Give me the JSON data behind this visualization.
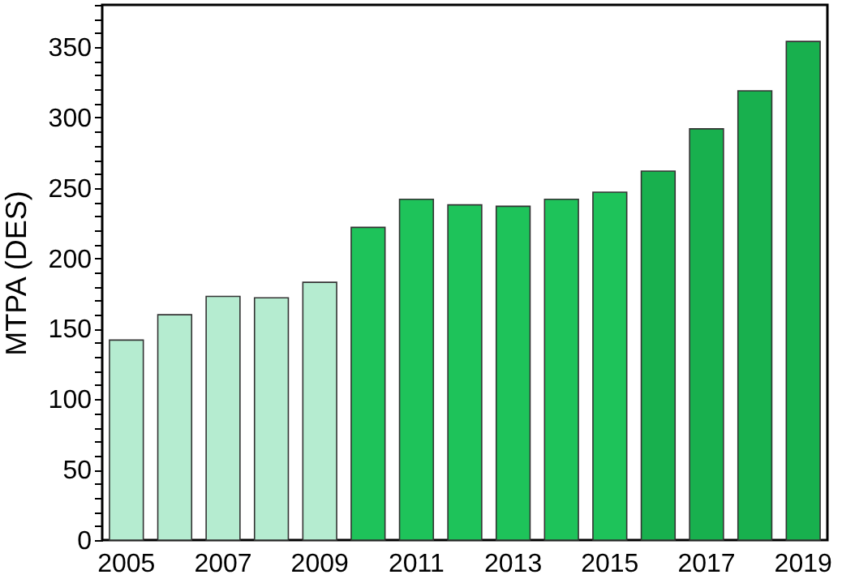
{
  "chart_data": {
    "type": "bar",
    "ylabel": "MTPA (DES)",
    "categories": [
      "2005",
      null,
      "2007",
      null,
      "2009",
      null,
      "2011",
      null,
      "2013",
      null,
      "2015",
      null,
      "2017",
      null,
      "2019"
    ],
    "values": [
      142,
      160,
      173,
      172,
      183,
      222,
      242,
      238,
      237,
      242,
      247,
      262,
      292,
      319,
      354
    ],
    "colors": [
      "#b5ecd0",
      "#b5ecd0",
      "#b5ecd0",
      "#b5ecd0",
      "#b5ecd0",
      "#1ec35a",
      "#1ec35a",
      "#1ec35a",
      "#1ec35a",
      "#1ec35a",
      "#1ec35a",
      "#18b04e",
      "#18b04e",
      "#18b04e",
      "#18b04e"
    ],
    "ylim": [
      0,
      380
    ],
    "yticks": [
      0,
      {
        "value": 10,
        "label": null
      },
      {
        "value": 20,
        "label": null
      },
      {
        "value": 30,
        "label": null
      },
      {
        "value": 40,
        "label": null
      },
      50,
      {
        "value": 60,
        "label": null
      },
      {
        "value": 70,
        "label": null
      },
      {
        "value": 80,
        "label": null
      },
      {
        "value": 90,
        "label": null
      },
      100,
      {
        "value": 110,
        "label": null
      },
      {
        "value": 120,
        "label": null
      },
      {
        "value": 130,
        "label": null
      },
      {
        "value": 140,
        "label": null
      },
      150,
      {
        "value": 160,
        "label": null
      },
      {
        "value": 170,
        "label": null
      },
      {
        "value": 180,
        "label": null
      },
      {
        "value": 190,
        "label": null
      },
      200,
      {
        "value": 210,
        "label": null
      },
      {
        "value": 220,
        "label": null
      },
      {
        "value": 230,
        "label": null
      },
      {
        "value": 240,
        "label": null
      },
      250,
      {
        "value": 260,
        "label": null
      },
      {
        "value": 270,
        "label": null
      },
      {
        "value": 280,
        "label": null
      },
      {
        "value": 290,
        "label": null
      },
      300,
      {
        "value": 310,
        "label": null
      },
      {
        "value": 320,
        "label": null
      },
      {
        "value": 330,
        "label": null
      },
      {
        "value": 340,
        "label": null
      },
      350,
      {
        "value": 360,
        "label": null
      },
      {
        "value": 370,
        "label": null
      },
      {
        "value": 380,
        "label": null
      }
    ],
    "grid": false
  }
}
